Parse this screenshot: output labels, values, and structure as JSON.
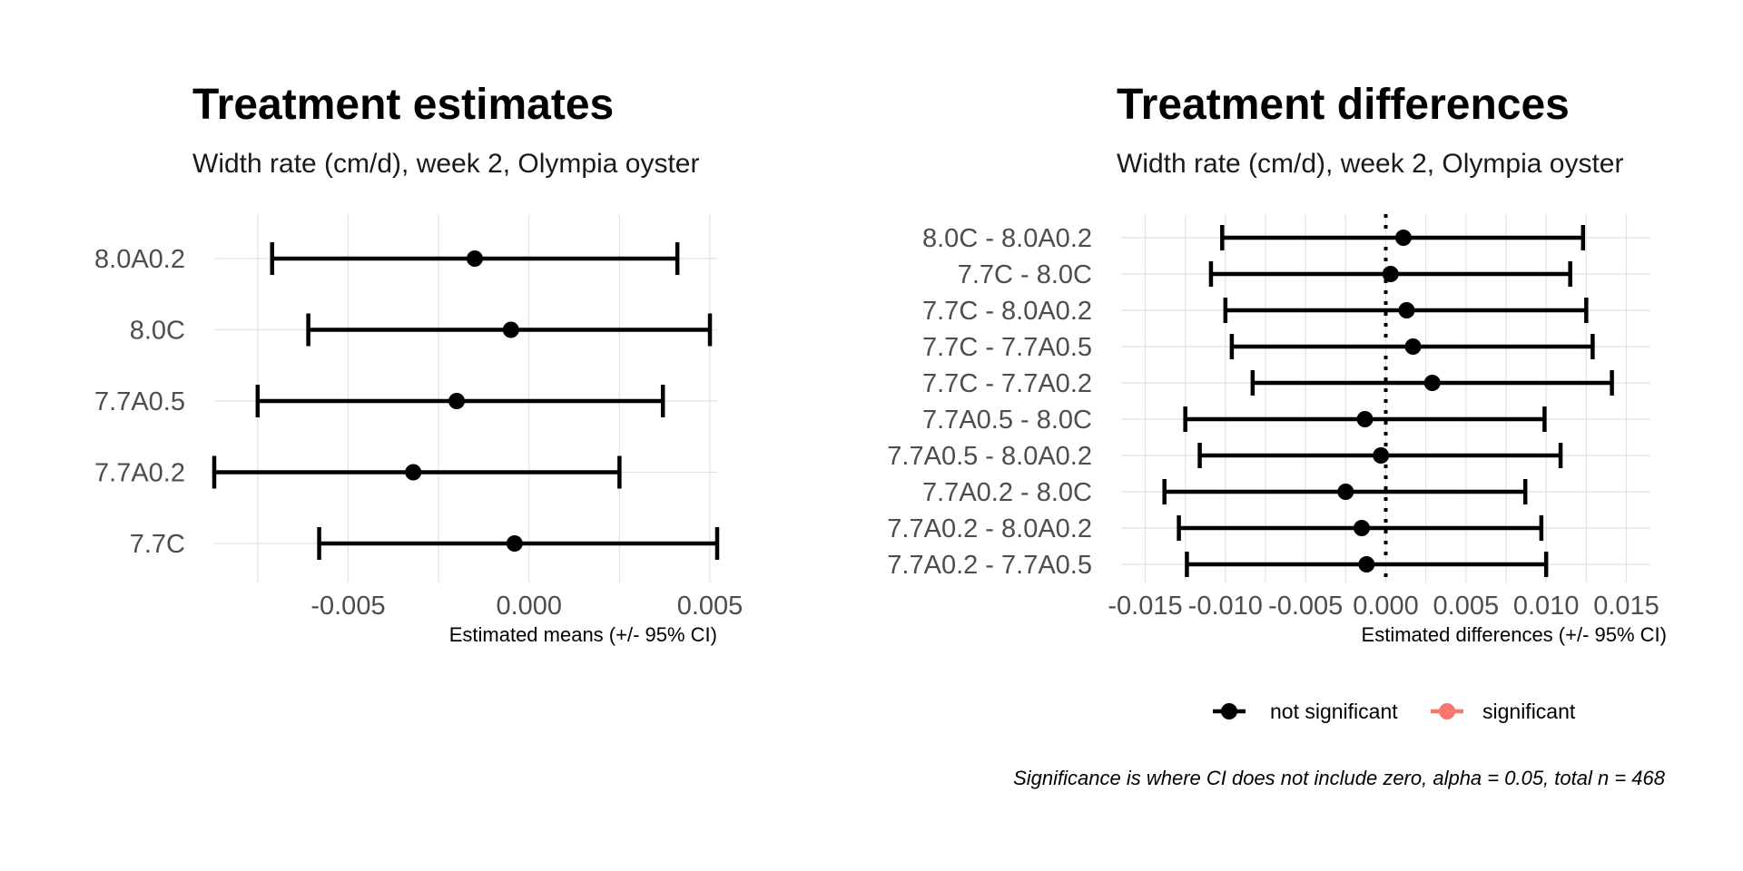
{
  "chart_data": [
    {
      "type": "errorbar",
      "title": "Treatment estimates",
      "subtitle": "Width rate (cm/d), week 2, Olympia oyster",
      "xlabel": "Estimated means (+/- 95% CI)",
      "ylabel": "",
      "xlim": [
        -0.0087,
        0.0052
      ],
      "xticks": [
        -0.005,
        0.0,
        0.005
      ],
      "xtick_labels": [
        "-0.005",
        "0.000",
        "0.005"
      ],
      "grid": true,
      "categories": [
        "8.0A0.2",
        "8.0C",
        "7.7A0.5",
        "7.7A0.2",
        "7.7C"
      ],
      "estimates": [
        -0.0015,
        -0.0005,
        -0.002,
        -0.0032,
        -0.0004
      ],
      "lower": [
        -0.0071,
        -0.0061,
        -0.0075,
        -0.0087,
        -0.0058
      ],
      "upper": [
        0.0041,
        0.005,
        0.0037,
        0.0025,
        0.0052
      ],
      "color": "#000000"
    },
    {
      "type": "errorbar",
      "title": "Treatment differences",
      "subtitle": "Width rate (cm/d), week 2, Olympia oyster",
      "xlabel": "Estimated differences (+/- 95% CI)",
      "ylabel": "",
      "xlim": [
        -0.0165,
        0.0165
      ],
      "xticks": [
        -0.015,
        -0.01,
        -0.005,
        0.0,
        0.005,
        0.01,
        0.015
      ],
      "xtick_labels": [
        "-0.015",
        "-0.010",
        "-0.005",
        "0.000",
        "0.005",
        "0.010",
        "0.015"
      ],
      "grid": true,
      "reference_line": 0,
      "categories": [
        "8.0C - 8.0A0.2",
        "7.7C - 8.0C",
        "7.7C - 8.0A0.2",
        "7.7C - 7.7A0.5",
        "7.7C - 7.7A0.2",
        "7.7A0.5 - 8.0C",
        "7.7A0.5 - 8.0A0.2",
        "7.7A0.2 - 8.0C",
        "7.7A0.2 - 8.0A0.2",
        "7.7A0.2 - 7.7A0.5"
      ],
      "estimates": [
        0.0011,
        0.0003,
        0.0013,
        0.0017,
        0.0029,
        -0.0013,
        -0.0003,
        -0.0025,
        -0.0015,
        -0.0012
      ],
      "lower": [
        -0.0102,
        -0.0109,
        -0.01,
        -0.0096,
        -0.0083,
        -0.0125,
        -0.0116,
        -0.0138,
        -0.0129,
        -0.0124
      ],
      "upper": [
        0.0123,
        0.0115,
        0.0125,
        0.0129,
        0.0141,
        0.0099,
        0.0109,
        0.0087,
        0.0097,
        0.01
      ],
      "significant": [
        false,
        false,
        false,
        false,
        false,
        false,
        false,
        false,
        false,
        false
      ],
      "legend": {
        "position": "bottom",
        "items": [
          {
            "label": "not significant",
            "color": "#000000"
          },
          {
            "label": "significant",
            "color": "#F8766D"
          }
        ]
      }
    }
  ],
  "caption": "Significance is where CI does not include zero, alpha = 0.05, total n = 468"
}
